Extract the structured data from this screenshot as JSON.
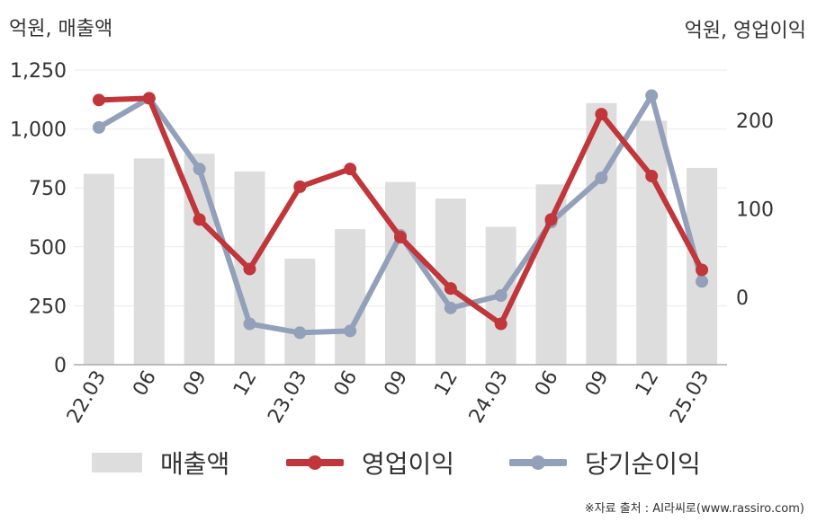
{
  "units": {
    "left": "억원, 매출액",
    "right": "억원, 영업이익"
  },
  "legend": {
    "bar": "매출액",
    "line1": "영업이익",
    "line2": "당기순이익"
  },
  "credit": "※자료 출처 : AI라씨로(www.rassiro.com)",
  "colors": {
    "bar": "#dddddd",
    "line1": "#c0363a",
    "line2": "#93a0b9"
  },
  "chart_data": {
    "type": "bar",
    "categories": [
      "22.03",
      "06",
      "09",
      "12",
      "23.03",
      "06",
      "09",
      "12",
      "24.03",
      "06",
      "09",
      "12",
      "25.03"
    ],
    "y_left": {
      "ticks": [
        "0",
        "250",
        "500",
        "750",
        "1,000",
        "1,250"
      ],
      "ylim": [
        0,
        1250
      ]
    },
    "y_right": {
      "ticks": [
        "0",
        "100",
        "200"
      ],
      "ylim": [
        -75,
        260
      ]
    },
    "grid": true,
    "legend_position": "bottom",
    "series": [
      {
        "name": "매출액",
        "type": "bar",
        "axis": "left",
        "values": [
          810,
          875,
          895,
          820,
          450,
          575,
          775,
          705,
          585,
          765,
          1110,
          1035,
          835
        ]
      },
      {
        "name": "영업이익",
        "type": "line",
        "axis": "right",
        "values": [
          223,
          225,
          88,
          32,
          125,
          145,
          68,
          10,
          -30,
          88,
          207,
          137,
          31
        ]
      },
      {
        "name": "당기순이익",
        "type": "line",
        "axis": "right",
        "values": [
          192,
          225,
          145,
          -30,
          -40,
          -38,
          70,
          -12,
          2,
          85,
          135,
          228,
          18
        ]
      }
    ]
  }
}
